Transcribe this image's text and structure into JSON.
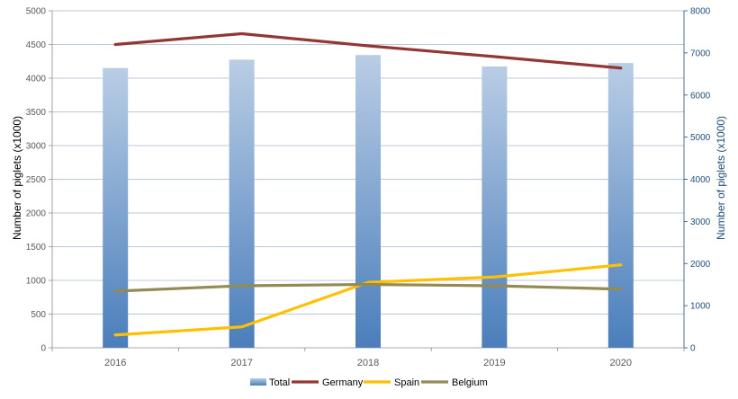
{
  "chart_data": {
    "type": "bar",
    "categories": [
      "2016",
      "2017",
      "2018",
      "2019",
      "2020"
    ],
    "ylabel": "Number of piglets (x1000)",
    "y2label": "Number of piglets (x1000)",
    "ylim": [
      0,
      5000
    ],
    "y2lim": [
      0,
      8000
    ],
    "yticks": [
      0,
      500,
      1000,
      1500,
      2000,
      2500,
      3000,
      3500,
      4000,
      4500,
      5000
    ],
    "y2ticks": [
      0,
      1000,
      2000,
      3000,
      4000,
      5000,
      6000,
      7000,
      8000
    ],
    "grid": true,
    "legend_position": "bottom",
    "series": [
      {
        "name": "Total",
        "type": "bar",
        "axis": "right",
        "color": "#4f81bd",
        "values": [
          6640,
          6840,
          6950,
          6680,
          6760
        ]
      },
      {
        "name": "Germany",
        "type": "line",
        "axis": "left",
        "color": "#943634",
        "values": [
          4500,
          4660,
          4480,
          4320,
          4150
        ]
      },
      {
        "name": "Spain",
        "type": "line",
        "axis": "left",
        "color": "#ffc000",
        "values": [
          190,
          310,
          970,
          1050,
          1230
        ]
      },
      {
        "name": "Belgium",
        "type": "line",
        "axis": "left",
        "color": "#948a54",
        "values": [
          840,
          920,
          940,
          920,
          870
        ]
      }
    ]
  }
}
